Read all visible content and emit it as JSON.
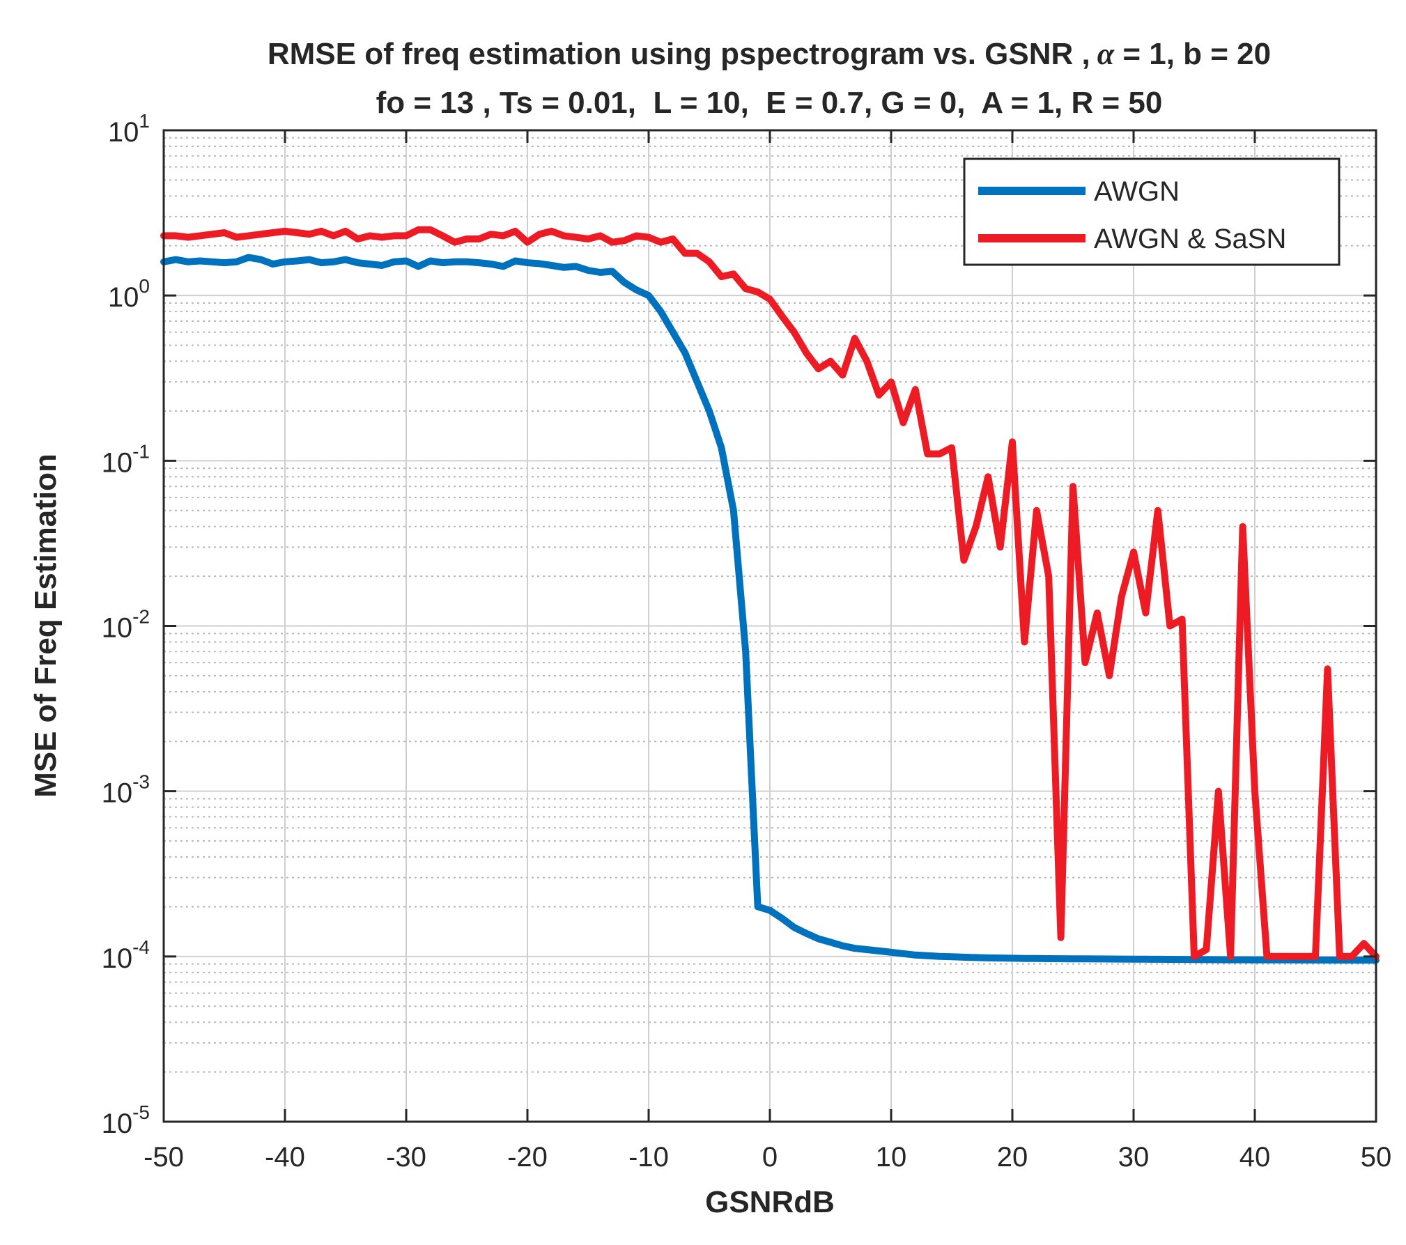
{
  "chart_data": {
    "type": "line",
    "title_line1_text": "RMSE of freq estimation using pspectrogram vs. GSNR ,",
    "title_line1_alpha": "α",
    "title_line1_tail": " = 1, b = 20",
    "title_line2": "fo = 13 , Ts = 0.01,  L = 10,  E = 0.7, G = 0,  A = 1, R = 50",
    "xlabel": "GSNRdB",
    "ylabel": "MSE of Freq Estimation",
    "xlim": [
      -50,
      50
    ],
    "ylim": [
      1e-05,
      10
    ],
    "yscale": "log",
    "grid": true,
    "minor_grid": true,
    "legend_position": "top-right",
    "x_ticks": [
      "-50",
      "-40",
      "-30",
      "-20",
      "-10",
      "0",
      "10",
      "20",
      "30",
      "40",
      "50"
    ],
    "y_ticks": [
      {
        "base": "10",
        "exp": "1"
      },
      {
        "base": "10",
        "exp": "0"
      },
      {
        "base": "10",
        "exp": "-1"
      },
      {
        "base": "10",
        "exp": "-2"
      },
      {
        "base": "10",
        "exp": "-3"
      },
      {
        "base": "10",
        "exp": "-4"
      },
      {
        "base": "10",
        "exp": "-5"
      }
    ],
    "x": [
      -50,
      -49,
      -48,
      -47,
      -46,
      -45,
      -44,
      -43,
      -42,
      -41,
      -40,
      -39,
      -38,
      -37,
      -36,
      -35,
      -34,
      -33,
      -32,
      -31,
      -30,
      -29,
      -28,
      -27,
      -26,
      -25,
      -24,
      -23,
      -22,
      -21,
      -20,
      -19,
      -18,
      -17,
      -16,
      -15,
      -14,
      -13,
      -12,
      -11,
      -10,
      -9,
      -8,
      -7,
      -6,
      -5,
      -4,
      -3,
      -2,
      -1,
      0,
      1,
      2,
      3,
      4,
      5,
      6,
      7,
      8,
      9,
      10,
      11,
      12,
      13,
      14,
      15,
      16,
      17,
      18,
      19,
      20,
      21,
      22,
      23,
      24,
      25,
      26,
      27,
      28,
      29,
      30,
      31,
      32,
      33,
      34,
      35,
      36,
      37,
      38,
      39,
      40,
      41,
      42,
      43,
      44,
      45,
      46,
      47,
      48,
      49,
      50
    ],
    "series": [
      {
        "name": "AWGN",
        "color": "#0072BD",
        "values": [
          1.6,
          1.65,
          1.6,
          1.62,
          1.6,
          1.58,
          1.6,
          1.7,
          1.65,
          1.55,
          1.6,
          1.62,
          1.65,
          1.58,
          1.6,
          1.65,
          1.58,
          1.55,
          1.52,
          1.6,
          1.62,
          1.5,
          1.62,
          1.58,
          1.6,
          1.6,
          1.58,
          1.55,
          1.5,
          1.62,
          1.58,
          1.56,
          1.52,
          1.48,
          1.5,
          1.42,
          1.38,
          1.4,
          1.2,
          1.08,
          1.0,
          0.8,
          0.6,
          0.45,
          0.3,
          0.2,
          0.12,
          0.05,
          0.007,
          0.0002,
          0.00019,
          0.00017,
          0.00015,
          0.000138,
          0.000128,
          0.000122,
          0.000116,
          0.000112,
          0.00011,
          0.000108,
          0.000106,
          0.000104,
          0.000102,
          0.000101,
          0.0001,
          9.95e-05,
          9.9e-05,
          9.85e-05,
          9.8e-05,
          9.78e-05,
          9.75e-05,
          9.73e-05,
          9.72e-05,
          9.7e-05,
          9.69e-05,
          9.68e-05,
          9.67e-05,
          9.66e-05,
          9.65e-05,
          9.64e-05,
          9.63e-05,
          9.62e-05,
          9.61e-05,
          9.6e-05,
          9.59e-05,
          9.58e-05,
          9.57e-05,
          9.56e-05,
          9.55e-05,
          9.55e-05,
          9.54e-05,
          9.54e-05,
          9.53e-05,
          9.53e-05,
          9.52e-05,
          9.52e-05,
          9.51e-05,
          9.51e-05,
          9.5e-05,
          9.5e-05,
          9.5e-05
        ]
      },
      {
        "name": "AWGN & SaSN",
        "color": "#ED1C24",
        "values": [
          2.3,
          2.3,
          2.25,
          2.3,
          2.35,
          2.4,
          2.25,
          2.3,
          2.35,
          2.4,
          2.45,
          2.4,
          2.35,
          2.45,
          2.3,
          2.45,
          2.2,
          2.3,
          2.25,
          2.3,
          2.3,
          2.5,
          2.5,
          2.3,
          2.1,
          2.2,
          2.2,
          2.35,
          2.3,
          2.45,
          2.1,
          2.35,
          2.45,
          2.3,
          2.25,
          2.2,
          2.3,
          2.1,
          2.15,
          2.3,
          2.25,
          2.1,
          2.2,
          1.8,
          1.8,
          1.6,
          1.3,
          1.35,
          1.1,
          1.05,
          0.95,
          0.75,
          0.6,
          0.45,
          0.36,
          0.4,
          0.33,
          0.55,
          0.4,
          0.25,
          0.3,
          0.17,
          0.27,
          0.11,
          0.11,
          0.12,
          0.025,
          0.04,
          0.08,
          0.03,
          0.13,
          0.008,
          0.05,
          0.02,
          0.00013,
          0.07,
          0.006,
          0.012,
          0.005,
          0.015,
          0.028,
          0.012,
          0.05,
          0.01,
          0.011,
          0.0001,
          0.00011,
          0.001,
          0.0001,
          0.04,
          0.001,
          0.0001,
          0.0001,
          0.0001,
          0.0001,
          0.0001,
          0.0055,
          0.0001,
          0.0001,
          0.00012,
          0.0001
        ]
      }
    ]
  }
}
